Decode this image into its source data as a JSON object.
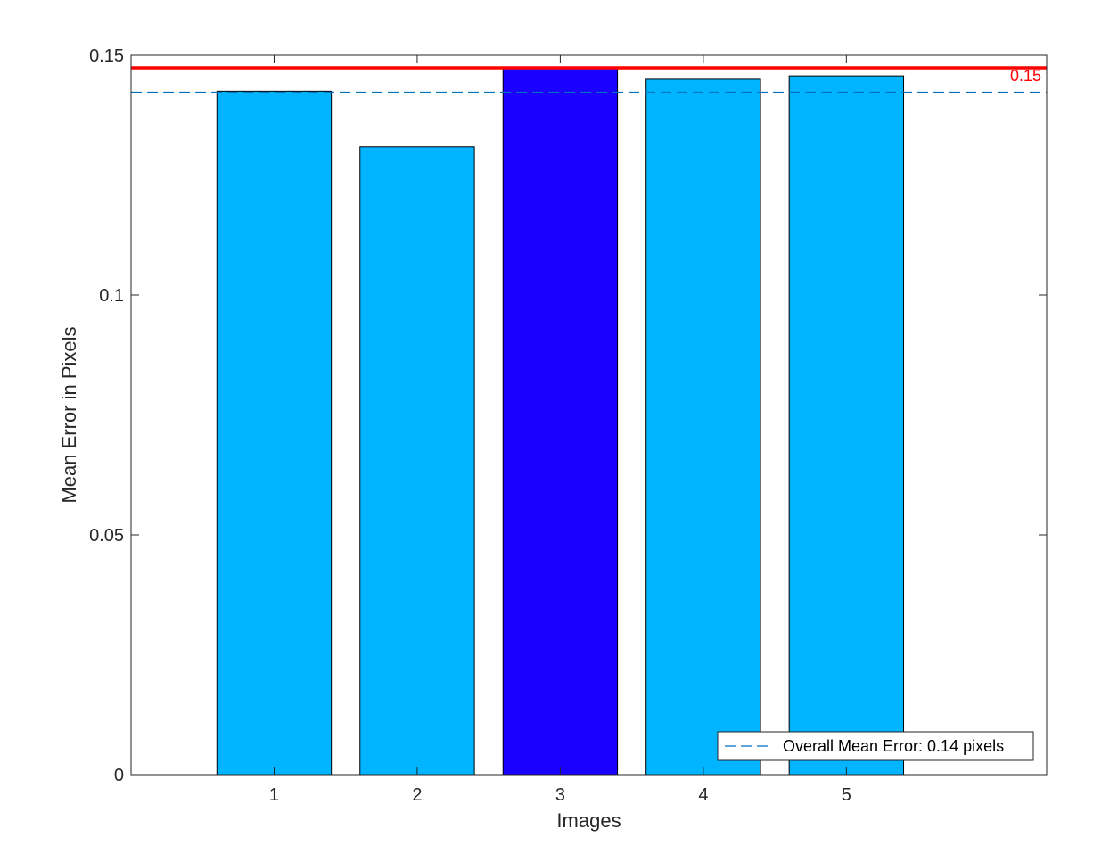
{
  "chart_data": {
    "type": "bar",
    "title": "",
    "xlabel": "Images",
    "ylabel": "Mean Error in Pixels",
    "categories": [
      "1",
      "2",
      "3",
      "4",
      "5"
    ],
    "values": [
      0.1425,
      0.1309,
      0.1474,
      0.145,
      0.1457
    ],
    "xlim": [
      0,
      6.4
    ],
    "ylim": [
      0,
      0.15
    ],
    "yticks": [
      0,
      0.05,
      0.1,
      0.15
    ],
    "ytick_labels": [
      "0",
      "0.05",
      "0.1",
      "0.15"
    ],
    "bar_colors": [
      "#00b4ff",
      "#00b4ff",
      "#1a00ff",
      "#00b4ff",
      "#00b4ff"
    ],
    "highlighted_bar": "3",
    "max_line": {
      "value": 0.1474,
      "label": "0.15",
      "color": "#ff0000"
    },
    "mean_line": {
      "value": 0.1423,
      "color": "#0072bd",
      "style": "dashed"
    },
    "legend": {
      "entries": [
        "Overall Mean Error: 0.14 pixels"
      ],
      "position": "bottom-right"
    },
    "grid": false
  }
}
